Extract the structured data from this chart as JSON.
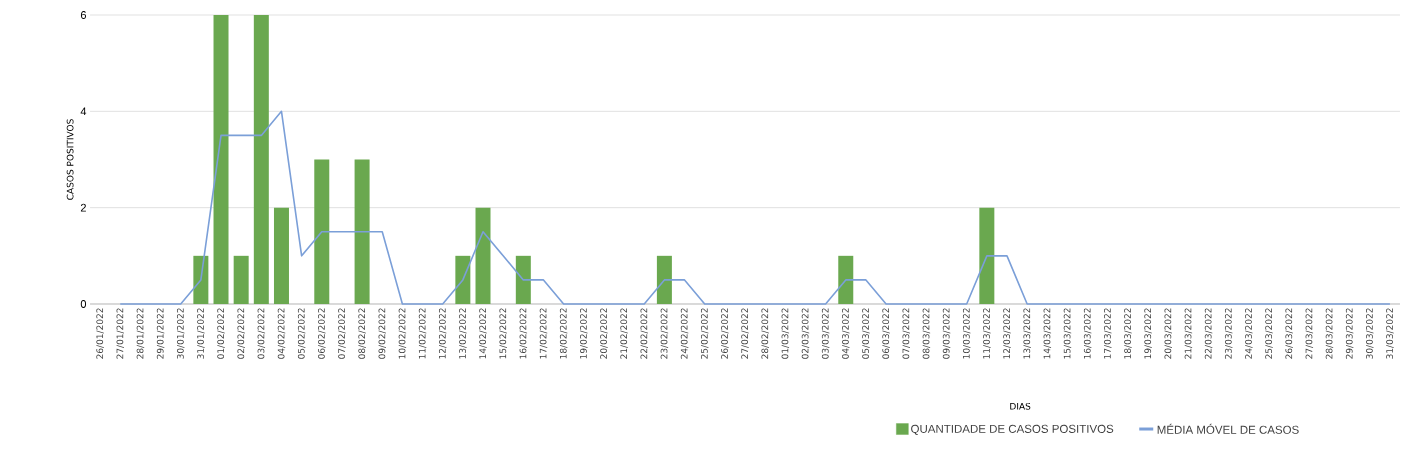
{
  "chart_data": {
    "type": "bar",
    "xlabel": "DIAS",
    "ylabel": "CASOS POSITIVOS",
    "categories": [
      "26/01/2022",
      "27/01/2022",
      "28/01/2022",
      "29/01/2022",
      "30/01/2022",
      "31/01/2022",
      "01/02/2022",
      "02/02/2022",
      "03/02/2022",
      "04/02/2022",
      "05/02/2022",
      "06/02/2022",
      "07/02/2022",
      "08/02/2022",
      "09/02/2022",
      "10/02/2022",
      "11/02/2022",
      "12/02/2022",
      "13/02/2022",
      "14/02/2022",
      "15/02/2022",
      "16/02/2022",
      "17/02/2022",
      "18/02/2022",
      "19/02/2022",
      "20/02/2022",
      "21/02/2022",
      "22/02/2022",
      "23/02/2022",
      "24/02/2022",
      "25/02/2022",
      "26/02/2022",
      "27/02/2022",
      "28/02/2022",
      "01/03/2022",
      "02/03/2022",
      "03/03/2022",
      "04/03/2022",
      "05/03/2022",
      "06/03/2022",
      "07/03/2022",
      "08/03/2022",
      "09/03/2022",
      "10/03/2022",
      "11/03/2022",
      "12/03/2022",
      "13/03/2022",
      "14/03/2022",
      "15/03/2022",
      "16/03/2022",
      "17/03/2022",
      "18/03/2022",
      "19/03/2022",
      "20/03/2022",
      "21/03/2022",
      "22/03/2022",
      "23/03/2022",
      "24/03/2022",
      "25/03/2022",
      "26/03/2022",
      "27/03/2022",
      "28/03/2022",
      "29/03/2022",
      "30/03/2022",
      "31/03/2022"
    ],
    "series": [
      {
        "name": "QUANTIDADE DE CASOS POSITIVOS",
        "type": "bar",
        "color": "#6aa84f",
        "values": [
          0,
          0,
          0,
          0,
          0,
          1,
          6,
          1,
          6,
          2,
          0,
          3,
          0,
          3,
          0,
          0,
          0,
          0,
          1,
          2,
          0,
          1,
          0,
          0,
          0,
          0,
          0,
          0,
          1,
          0,
          0,
          0,
          0,
          0,
          0,
          0,
          0,
          1,
          0,
          0,
          0,
          0,
          0,
          0,
          2,
          0,
          0,
          0,
          0,
          0,
          0,
          0,
          0,
          0,
          0,
          0,
          0,
          0,
          0,
          0,
          0,
          0,
          0,
          0,
          0
        ]
      },
      {
        "name": "MÉDIA MÓVEL DE CASOS",
        "type": "line",
        "color": "#7b9fd8",
        "values": [
          null,
          0,
          0,
          0,
          0,
          0.5,
          3.5,
          3.5,
          3.5,
          4,
          1,
          1.5,
          1.5,
          1.5,
          1.5,
          0,
          0,
          0,
          0.5,
          1.5,
          1,
          0.5,
          0.5,
          0,
          0,
          0,
          0,
          0,
          0.5,
          0.5,
          0,
          0,
          0,
          0,
          0,
          0,
          0,
          0.5,
          0.5,
          0,
          0,
          0,
          0,
          0,
          1,
          1,
          0,
          0,
          0,
          0,
          0,
          0,
          0,
          0,
          0,
          0,
          0,
          0,
          0,
          0,
          0,
          0,
          0,
          0,
          0
        ]
      }
    ],
    "ylim": [
      0,
      6
    ],
    "yticks": [
      0,
      2,
      4,
      6
    ],
    "grid": "y",
    "legend": "bottom"
  }
}
